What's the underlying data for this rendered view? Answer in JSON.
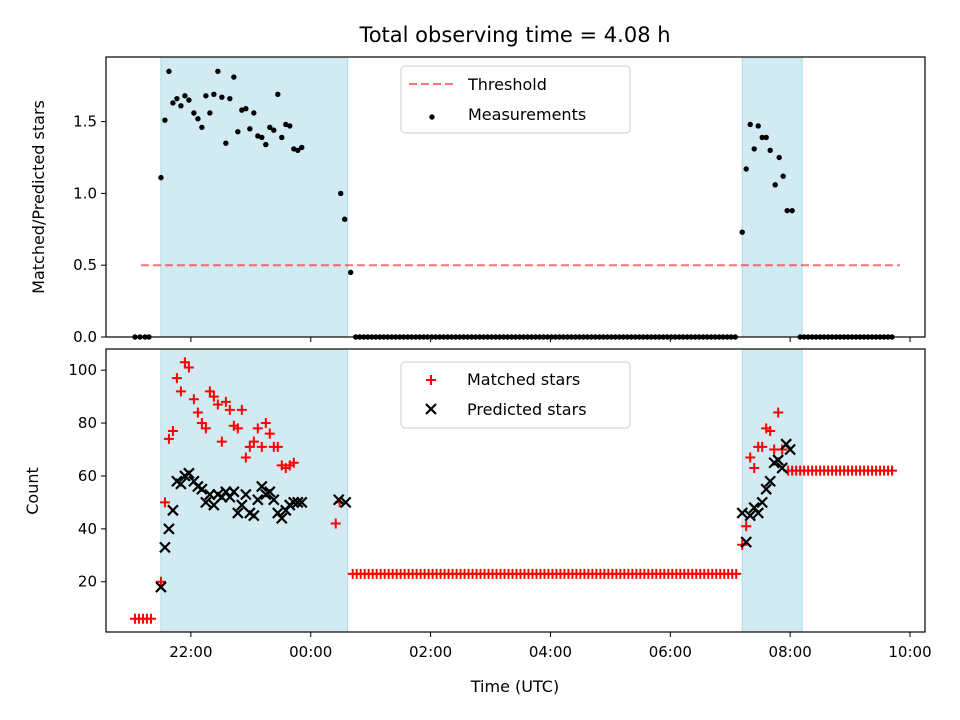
{
  "title": "Total observing time = 4.08 h",
  "xlabel": "Time (UTC)",
  "colors": {
    "shade": "#add8e6",
    "threshold": "#ff0000",
    "measurement": "#000000",
    "matched": "#ff0000",
    "predicted": "#000000"
  },
  "chart_data": [
    {
      "type": "scatter",
      "panel": "top",
      "ylabel": "Matched/Predicted stars",
      "xlim": [
        "20:35",
        "10:15"
      ],
      "ylim": [
        0,
        1.95
      ],
      "yticks": [
        0.0,
        0.5,
        1.0,
        1.5
      ],
      "ytick_labels": [
        "0.0",
        "0.5",
        "1.0",
        "1.5"
      ],
      "grid": false,
      "legend_position": "top-center",
      "shaded_intervals": [
        [
          "21:30",
          "00:37"
        ],
        [
          "07:12",
          "08:12"
        ]
      ],
      "threshold": {
        "name": "Threshold",
        "value": 0.5,
        "x_range": [
          "21:10",
          "09:50"
        ],
        "style": "dashed"
      },
      "series": [
        {
          "name": "Measurements",
          "points": [
            [
              "21:04",
              0.0
            ],
            [
              "21:09",
              0.0
            ],
            [
              "21:14",
              0.0
            ],
            [
              "21:18",
              0.0
            ],
            [
              "21:30",
              1.11
            ],
            [
              "21:34",
              1.51
            ],
            [
              "21:38",
              1.85
            ],
            [
              "21:42",
              1.63
            ],
            [
              "21:46",
              1.66
            ],
            [
              "21:50",
              1.61
            ],
            [
              "21:54",
              1.68
            ],
            [
              "21:58",
              1.65
            ],
            [
              "22:03",
              1.56
            ],
            [
              "22:07",
              1.52
            ],
            [
              "22:11",
              1.46
            ],
            [
              "22:15",
              1.68
            ],
            [
              "22:19",
              1.56
            ],
            [
              "22:23",
              1.69
            ],
            [
              "22:27",
              1.85
            ],
            [
              "22:31",
              1.67
            ],
            [
              "22:35",
              1.35
            ],
            [
              "22:39",
              1.66
            ],
            [
              "22:43",
              1.81
            ],
            [
              "22:47",
              1.43
            ],
            [
              "22:51",
              1.58
            ],
            [
              "22:55",
              1.59
            ],
            [
              "22:59",
              1.45
            ],
            [
              "23:03",
              1.56
            ],
            [
              "23:07",
              1.4
            ],
            [
              "23:11",
              1.39
            ],
            [
              "23:15",
              1.34
            ],
            [
              "23:19",
              1.46
            ],
            [
              "23:23",
              1.44
            ],
            [
              "23:27",
              1.69
            ],
            [
              "23:31",
              1.39
            ],
            [
              "23:35",
              1.48
            ],
            [
              "23:39",
              1.47
            ],
            [
              "23:43",
              1.31
            ],
            [
              "23:47",
              1.3
            ],
            [
              "23:51",
              1.32
            ],
            [
              "00:30",
              1.0
            ],
            [
              "00:34",
              0.82
            ],
            [
              "00:40",
              0.45
            ],
            [
              "07:12",
              0.73
            ],
            [
              "07:16",
              1.17
            ],
            [
              "07:20",
              1.48
            ],
            [
              "07:24",
              1.31
            ],
            [
              "07:28",
              1.47
            ],
            [
              "07:32",
              1.39
            ],
            [
              "07:36",
              1.39
            ],
            [
              "07:40",
              1.3
            ],
            [
              "07:45",
              1.06
            ],
            [
              "07:49",
              1.25
            ],
            [
              "07:53",
              1.12
            ],
            [
              "07:57",
              0.88
            ],
            [
              "08:02",
              0.88
            ]
          ],
          "zero_ranges": [
            [
              "00:45",
              "07:08"
            ],
            [
              "08:10",
              "09:45"
            ]
          ],
          "zero_value": 0.0
        }
      ]
    },
    {
      "type": "scatter",
      "panel": "bottom",
      "ylabel": "Count",
      "xlim": [
        "20:35",
        "10:15"
      ],
      "ylim": [
        1,
        108
      ],
      "yticks": [
        20,
        40,
        60,
        80,
        100
      ],
      "ytick_labels": [
        "20",
        "40",
        "60",
        "80",
        "100"
      ],
      "xticks": [
        "22:00",
        "00:00",
        "02:00",
        "04:00",
        "06:00",
        "08:00",
        "10:00"
      ],
      "grid": false,
      "legend_position": "top-center",
      "shaded_intervals": [
        [
          "21:30",
          "00:37"
        ],
        [
          "07:12",
          "08:12"
        ]
      ],
      "series": [
        {
          "name": "Matched stars",
          "marker": "plus",
          "points": [
            [
              "21:04",
              6
            ],
            [
              "21:08",
              6
            ],
            [
              "21:12",
              6
            ],
            [
              "21:16",
              6
            ],
            [
              "21:20",
              6
            ],
            [
              "21:30",
              20
            ],
            [
              "21:34",
              50
            ],
            [
              "21:38",
              74
            ],
            [
              "21:42",
              77
            ],
            [
              "21:46",
              97
            ],
            [
              "21:50",
              92
            ],
            [
              "21:54",
              103
            ],
            [
              "21:58",
              101
            ],
            [
              "22:03",
              89
            ],
            [
              "22:07",
              84
            ],
            [
              "22:11",
              80
            ],
            [
              "22:15",
              78
            ],
            [
              "22:19",
              92
            ],
            [
              "22:23",
              90
            ],
            [
              "22:27",
              87
            ],
            [
              "22:31",
              73
            ],
            [
              "22:35",
              88
            ],
            [
              "22:39",
              85
            ],
            [
              "22:43",
              79
            ],
            [
              "22:47",
              78
            ],
            [
              "22:51",
              85
            ],
            [
              "22:55",
              67
            ],
            [
              "22:59",
              71
            ],
            [
              "23:03",
              73
            ],
            [
              "23:07",
              78
            ],
            [
              "23:11",
              71
            ],
            [
              "23:15",
              80
            ],
            [
              "23:19",
              76
            ],
            [
              "23:23",
              71
            ],
            [
              "23:27",
              71
            ],
            [
              "23:31",
              64
            ],
            [
              "23:35",
              63
            ],
            [
              "23:39",
              64
            ],
            [
              "23:43",
              65
            ],
            [
              "00:25",
              42
            ],
            [
              "00:29",
              50
            ],
            [
              "07:12",
              34
            ],
            [
              "07:16",
              41
            ],
            [
              "07:20",
              67
            ],
            [
              "07:24",
              63
            ],
            [
              "07:28",
              71
            ],
            [
              "07:32",
              71
            ],
            [
              "07:36",
              78
            ],
            [
              "07:40",
              77
            ],
            [
              "07:44",
              70
            ],
            [
              "07:48",
              84
            ],
            [
              "07:52",
              70
            ]
          ],
          "flat_ranges": [
            {
              "range": [
                "00:42",
                "07:08"
              ],
              "value": 23
            },
            {
              "range": [
                "07:58",
                "09:45"
              ],
              "value": 62
            }
          ]
        },
        {
          "name": "Predicted stars",
          "marker": "x",
          "points": [
            [
              "21:30",
              18
            ],
            [
              "21:34",
              33
            ],
            [
              "21:38",
              40
            ],
            [
              "21:42",
              47
            ],
            [
              "21:46",
              58
            ],
            [
              "21:50",
              57
            ],
            [
              "21:54",
              60
            ],
            [
              "21:58",
              61
            ],
            [
              "22:03",
              58
            ],
            [
              "22:07",
              56
            ],
            [
              "22:11",
              55
            ],
            [
              "22:15",
              50
            ],
            [
              "22:19",
              53
            ],
            [
              "22:23",
              49
            ],
            [
              "22:27",
              53
            ],
            [
              "22:31",
              52
            ],
            [
              "22:35",
              54
            ],
            [
              "22:39",
              52
            ],
            [
              "22:43",
              54
            ],
            [
              "22:47",
              46
            ],
            [
              "22:51",
              49
            ],
            [
              "22:55",
              53
            ],
            [
              "22:59",
              46
            ],
            [
              "23:03",
              45
            ],
            [
              "23:07",
              51
            ],
            [
              "23:11",
              56
            ],
            [
              "23:15",
              53
            ],
            [
              "23:19",
              54
            ],
            [
              "23:23",
              51
            ],
            [
              "23:27",
              46
            ],
            [
              "23:31",
              44
            ],
            [
              "23:35",
              47
            ],
            [
              "23:39",
              49
            ],
            [
              "23:43",
              50
            ],
            [
              "23:47",
              50
            ],
            [
              "23:51",
              50
            ],
            [
              "00:28",
              51
            ],
            [
              "00:35",
              50
            ],
            [
              "07:12",
              46
            ],
            [
              "07:16",
              35
            ],
            [
              "07:20",
              45
            ],
            [
              "07:24",
              48
            ],
            [
              "07:28",
              46
            ],
            [
              "07:32",
              50
            ],
            [
              "07:36",
              55
            ],
            [
              "07:40",
              58
            ],
            [
              "07:44",
              65
            ],
            [
              "07:48",
              66
            ],
            [
              "07:52",
              63
            ],
            [
              "07:56",
              72
            ],
            [
              "08:00",
              70
            ]
          ]
        }
      ]
    }
  ]
}
